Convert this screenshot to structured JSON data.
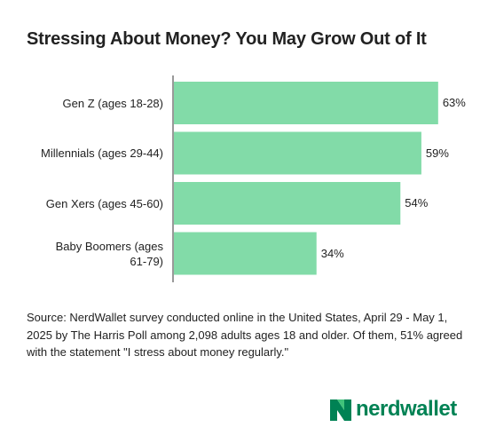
{
  "chart_data": {
    "type": "bar",
    "orientation": "horizontal",
    "title": "Stressing About Money? You May Grow Out of It",
    "categories": [
      "Gen Z (ages 18-28)",
      "Millennials (ages 29-44)",
      "Gen Xers (ages 45-60)",
      "Baby Boomers (ages 61-79)"
    ],
    "values": [
      63,
      59,
      54,
      34
    ],
    "value_labels": [
      "63%",
      "59%",
      "54%",
      "34%"
    ],
    "xlim": [
      0,
      66
    ],
    "bar_color": "#82dba8",
    "grid": false,
    "legend": "none"
  },
  "source": "Source: NerdWallet survey conducted online in the United States, April 29 - May 1, 2025 by The Harris Poll among 2,098 adults ages 18 and older.  Of them, 51% agreed with the statement \"I stress about money regularly.\"",
  "logo": {
    "text": "nerdwallet",
    "color": "#008254"
  }
}
